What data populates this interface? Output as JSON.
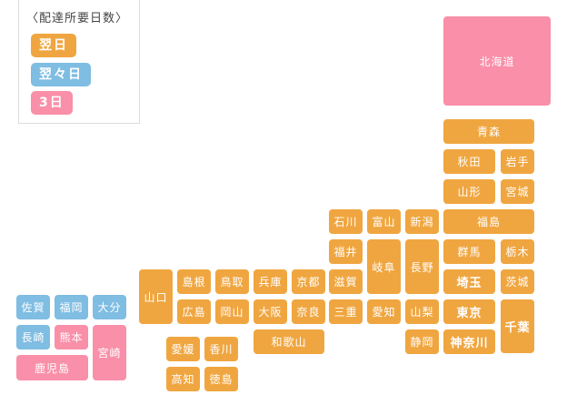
{
  "colors": {
    "next_day": "#f0a640",
    "two_days": "#7fbde2",
    "three_days": "#f98fa8"
  },
  "legend": {
    "title": "〈配達所要日数〉",
    "items": [
      {
        "label": "翌日",
        "category": "next_day"
      },
      {
        "label": "翌々日",
        "category": "two_days"
      },
      {
        "label": "3日",
        "category": "three_days"
      }
    ]
  },
  "prefectures": [
    {
      "name": "北海道",
      "category": "three_days"
    },
    {
      "name": "青森",
      "category": "next_day"
    },
    {
      "name": "秋田",
      "category": "next_day"
    },
    {
      "name": "岩手",
      "category": "next_day"
    },
    {
      "name": "山形",
      "category": "next_day"
    },
    {
      "name": "宮城",
      "category": "next_day"
    },
    {
      "name": "石川",
      "category": "next_day"
    },
    {
      "name": "富山",
      "category": "next_day"
    },
    {
      "name": "新潟",
      "category": "next_day"
    },
    {
      "name": "福島",
      "category": "next_day"
    },
    {
      "name": "福井",
      "category": "next_day"
    },
    {
      "name": "岐阜",
      "category": "next_day"
    },
    {
      "name": "長野",
      "category": "next_day"
    },
    {
      "name": "群馬",
      "category": "next_day"
    },
    {
      "name": "栃木",
      "category": "next_day"
    },
    {
      "name": "山口",
      "category": "next_day"
    },
    {
      "name": "島根",
      "category": "next_day"
    },
    {
      "name": "鳥取",
      "category": "next_day"
    },
    {
      "name": "兵庫",
      "category": "next_day"
    },
    {
      "name": "京都",
      "category": "next_day"
    },
    {
      "name": "滋賀",
      "category": "next_day"
    },
    {
      "name": "埼玉",
      "category": "next_day",
      "bold": true
    },
    {
      "name": "茨城",
      "category": "next_day"
    },
    {
      "name": "広島",
      "category": "next_day"
    },
    {
      "name": "岡山",
      "category": "next_day"
    },
    {
      "name": "大阪",
      "category": "next_day"
    },
    {
      "name": "奈良",
      "category": "next_day"
    },
    {
      "name": "三重",
      "category": "next_day"
    },
    {
      "name": "愛知",
      "category": "next_day"
    },
    {
      "name": "山梨",
      "category": "next_day"
    },
    {
      "name": "東京",
      "category": "next_day",
      "bold": true
    },
    {
      "name": "千葉",
      "category": "next_day",
      "bold": true
    },
    {
      "name": "和歌山",
      "category": "next_day"
    },
    {
      "name": "静岡",
      "category": "next_day"
    },
    {
      "name": "神奈川",
      "category": "next_day",
      "bold": true
    },
    {
      "name": "愛媛",
      "category": "next_day"
    },
    {
      "name": "香川",
      "category": "next_day"
    },
    {
      "name": "高知",
      "category": "next_day"
    },
    {
      "name": "徳島",
      "category": "next_day"
    },
    {
      "name": "佐賀",
      "category": "two_days"
    },
    {
      "name": "福岡",
      "category": "two_days"
    },
    {
      "name": "大分",
      "category": "two_days"
    },
    {
      "name": "長崎",
      "category": "two_days"
    },
    {
      "name": "熊本",
      "category": "three_days"
    },
    {
      "name": "宮崎",
      "category": "three_days"
    },
    {
      "name": "鹿児島",
      "category": "three_days"
    }
  ]
}
